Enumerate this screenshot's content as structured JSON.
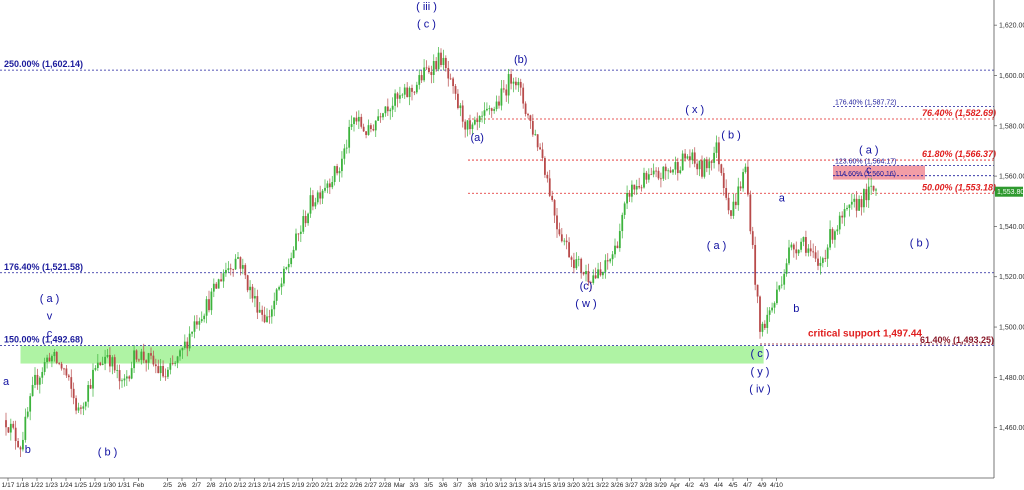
{
  "chart_data": {
    "type": "candlestick",
    "ylim": [
      1440,
      1630
    ],
    "y_ticks": [
      "1,460.00",
      "1,480.00",
      "1,500.00",
      "1,520.00",
      "1,540.00",
      "1,560.00",
      "1,580.00",
      "1,600.00",
      "1,620.00"
    ],
    "y_tick_values": [
      1460,
      1480,
      1500,
      1520,
      1540,
      1560,
      1580,
      1600,
      1620
    ],
    "current_price_label": "1,553.80",
    "current_price": 1553.8,
    "x_ticks": [
      "1/17",
      "1/18",
      "1/22",
      "1/23",
      "1/24",
      "1/25",
      "1/29",
      "1/30",
      "1/31",
      "Feb",
      "2/5",
      "2/6",
      "2/7",
      "2/8",
      "2/10",
      "2/12",
      "2/13",
      "2/14",
      "2/15",
      "2/19",
      "2/20",
      "2/21",
      "2/22",
      "2/26",
      "2/27",
      "2/28",
      "Mar",
      "3/3",
      "3/5",
      "3/6",
      "3/7",
      "3/8",
      "3/10",
      "3/12",
      "3/13",
      "3/14",
      "3/15",
      "3/19",
      "3/20",
      "3/21",
      "3/22",
      "3/26",
      "3/27",
      "3/28",
      "3/29",
      "Apr",
      "4/2",
      "4/3",
      "4/4",
      "4/5",
      "4/7",
      "4/9",
      "4/10"
    ],
    "x_tick_index": [
      0,
      2,
      4,
      6,
      8,
      10,
      12,
      14,
      16,
      18,
      22,
      24,
      26,
      28,
      30,
      32,
      34,
      36,
      38,
      40,
      42,
      44,
      46,
      48,
      50,
      52,
      54,
      56,
      58,
      60,
      62,
      64,
      66,
      68,
      70,
      72,
      74,
      76,
      78,
      80,
      82,
      84,
      86,
      88,
      90,
      92,
      94,
      96,
      98,
      100,
      102,
      104,
      106
    ],
    "price_path": [
      [
        0,
        1463
      ],
      [
        2,
        1453
      ],
      [
        4,
        1478
      ],
      [
        6,
        1489
      ],
      [
        8,
        1483
      ],
      [
        10,
        1466
      ],
      [
        12,
        1481
      ],
      [
        14,
        1490
      ],
      [
        16,
        1476
      ],
      [
        18,
        1490
      ],
      [
        20,
        1486
      ],
      [
        22,
        1480
      ],
      [
        24,
        1488
      ],
      [
        26,
        1502
      ],
      [
        28,
        1510
      ],
      [
        30,
        1522
      ],
      [
        32,
        1528
      ],
      [
        34,
        1512
      ],
      [
        36,
        1503
      ],
      [
        38,
        1517
      ],
      [
        40,
        1534
      ],
      [
        42,
        1549
      ],
      [
        44,
        1557
      ],
      [
        46,
        1563
      ],
      [
        48,
        1583
      ],
      [
        50,
        1577
      ],
      [
        52,
        1588
      ],
      [
        54,
        1590
      ],
      [
        56,
        1594
      ],
      [
        58,
        1602
      ],
      [
        60,
        1607
      ],
      [
        62,
        1590
      ],
      [
        64,
        1577
      ],
      [
        66,
        1583
      ],
      [
        68,
        1590
      ],
      [
        70,
        1601
      ],
      [
        72,
        1584
      ],
      [
        74,
        1568
      ],
      [
        76,
        1541
      ],
      [
        78,
        1528
      ],
      [
        80,
        1521
      ],
      [
        82,
        1520
      ],
      [
        84,
        1531
      ],
      [
        86,
        1554
      ],
      [
        88,
        1558
      ],
      [
        90,
        1560
      ],
      [
        92,
        1563
      ],
      [
        94,
        1568
      ],
      [
        96,
        1562
      ],
      [
        98,
        1571
      ],
      [
        100,
        1545
      ],
      [
        102,
        1563
      ],
      [
        104,
        1498
      ],
      [
        106,
        1510
      ],
      [
        108,
        1530
      ],
      [
        110,
        1535
      ],
      [
        112,
        1523
      ],
      [
        114,
        1538
      ],
      [
        116,
        1545
      ],
      [
        118,
        1551
      ],
      [
        120,
        1555
      ]
    ],
    "price_levels": [
      {
        "label": "250.00% (1,602.14)",
        "value": 1602.14,
        "color": "#1c1c9c",
        "style": "blue"
      },
      {
        "label": "176.40% (1,521.58)",
        "value": 1521.58,
        "color": "#1c1c9c",
        "style": "blue"
      },
      {
        "label": "150.00% (1,492.68)",
        "value": 1492.68,
        "color": "#1c1c9c",
        "style": "blue"
      },
      {
        "label": "176.40% (1,587.72)",
        "value": 1587.72,
        "color": "#1c1c9c",
        "style": "blue-small"
      },
      {
        "label": "76.40% (1,582.69)",
        "value": 1582.69,
        "color": "#e02020",
        "style": "red"
      },
      {
        "label": "61.80% (1,566.37)",
        "value": 1566.37,
        "color": "#e02020",
        "style": "red"
      },
      {
        "label": "123.60% (1,564.17)",
        "value": 1564.17,
        "color": "#1c1c9c",
        "style": "blue-small"
      },
      {
        "label": "114.60% (1,560.16)",
        "value": 1560.16,
        "color": "#1c1c9c",
        "style": "blue-small"
      },
      {
        "label": "50.00% (1,553.18)",
        "value": 1553.18,
        "color": "#e02020",
        "style": "red"
      },
      {
        "label": "61.40% (1,493.25)",
        "value": 1493.25,
        "color": "#8a1a2a",
        "style": "red-dark"
      }
    ],
    "support_text": "critical support 1,497.44",
    "wave_labels": [
      {
        "text": "a",
        "i": 0,
        "price": 1477
      },
      {
        "text": "b",
        "i": 3,
        "price": 1450
      },
      {
        "text": "( a )",
        "i": 6,
        "price": 1510
      },
      {
        "text": "v",
        "i": 6,
        "price": 1503
      },
      {
        "text": "c",
        "i": 6,
        "price": 1496
      },
      {
        "text": "( b )",
        "i": 14,
        "price": 1449
      },
      {
        "text": "( iii )",
        "i": 58,
        "price": 1626
      },
      {
        "text": "( c )",
        "i": 58,
        "price": 1619
      },
      {
        "text": "(b)",
        "i": 71,
        "price": 1605
      },
      {
        "text": "(a)",
        "i": 65,
        "price": 1574
      },
      {
        "text": "(c)",
        "i": 80,
        "price": 1515
      },
      {
        "text": "( w )",
        "i": 80,
        "price": 1508
      },
      {
        "text": "( x )",
        "i": 95,
        "price": 1585
      },
      {
        "text": "( b )",
        "i": 100,
        "price": 1575
      },
      {
        "text": "( a )",
        "i": 98,
        "price": 1531
      },
      {
        "text": "a",
        "i": 107,
        "price": 1550
      },
      {
        "text": "b",
        "i": 109,
        "price": 1506
      },
      {
        "text": "( c )",
        "i": 104,
        "price": 1488
      },
      {
        "text": "( y )",
        "i": 104,
        "price": 1481
      },
      {
        "text": "( iv )",
        "i": 104,
        "price": 1474
      },
      {
        "text": "( a )",
        "i": 119,
        "price": 1569
      },
      {
        "text": "c",
        "i": 119,
        "price": 1561
      },
      {
        "text": "( b )",
        "i": 126,
        "price": 1532
      }
    ]
  }
}
